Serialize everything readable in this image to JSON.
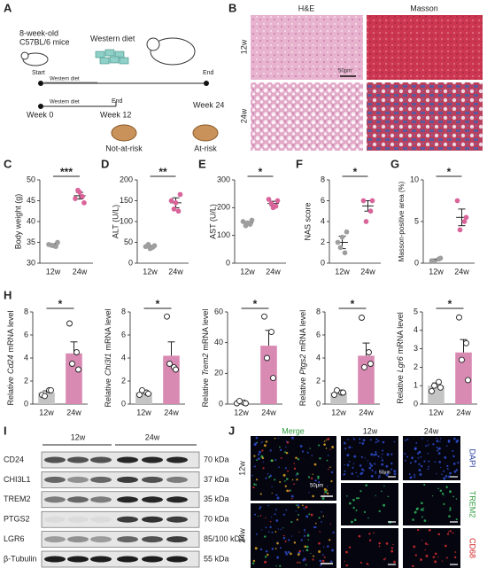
{
  "panel_labels": [
    "A",
    "B",
    "C",
    "D",
    "E",
    "F",
    "G",
    "H",
    "I",
    "J"
  ],
  "panel_a": {
    "mice": [
      "8-week-old",
      "C57BL/6 mice"
    ],
    "diet": "Western diet",
    "start": "Start",
    "end_top": "End",
    "timeline1_label": "Western diet",
    "timeline2_label": "Western diet",
    "end_mid": "End",
    "weeks": [
      "Week 0",
      "Week 12",
      "Week 24"
    ],
    "outcomes": [
      "Not-at-risk",
      "At-risk"
    ]
  },
  "panel_b": {
    "columns": [
      "H&E",
      "Masson"
    ],
    "rows": [
      "12w",
      "24w"
    ],
    "scale_bar": "50μm"
  },
  "chart_data": [
    {
      "type": "dot",
      "ylabel": "Body weight (g)",
      "categories": [
        "12w",
        "24w"
      ],
      "colors": [
        "#9e9e9e",
        "#d9649a"
      ],
      "values": [
        34.5,
        46.2
      ],
      "errors": [
        0.2,
        0.8
      ],
      "points": [
        [
          34.5,
          34,
          34.3,
          35,
          34.2
        ],
        [
          45.5,
          46,
          47.5,
          44.5,
          47
        ]
      ],
      "ylim": [
        30,
        50
      ],
      "yticks": [
        30,
        35,
        40,
        45,
        50
      ],
      "significance": "***"
    },
    {
      "type": "dot",
      "ylabel": "ALT (U/L)",
      "categories": [
        "12w",
        "24w"
      ],
      "colors": [
        "#9e9e9e",
        "#d9649a"
      ],
      "values": [
        40,
        145
      ],
      "errors": [
        2,
        12
      ],
      "points": [
        [
          40,
          38,
          45,
          42,
          35
        ],
        [
          150,
          125,
          130,
          165,
          145
        ]
      ],
      "ylim": [
        0,
        200
      ],
      "yticks": [
        0,
        50,
        100,
        150,
        200
      ],
      "significance": "**"
    },
    {
      "type": "dot",
      "ylabel": "AST (U/L)",
      "categories": [
        "12w",
        "24w"
      ],
      "colors": [
        "#9e9e9e",
        "#d9649a"
      ],
      "values": [
        145,
        215
      ],
      "errors": [
        5,
        8
      ],
      "points": [
        [
          150,
          140,
          135,
          155,
          145
        ],
        [
          230,
          205,
          215,
          225,
          200
        ]
      ],
      "ylim": [
        0,
        300
      ],
      "yticks": [
        0,
        100,
        200,
        300
      ],
      "significance": "*"
    },
    {
      "type": "dot",
      "ylabel": "NAS score",
      "categories": [
        "12w",
        "24w"
      ],
      "colors": [
        "#9e9e9e",
        "#d9649a"
      ],
      "values": [
        2,
        5.5
      ],
      "errors": [
        0.6,
        0.5
      ],
      "points": [
        [
          2,
          1,
          1.5,
          3,
          2.5
        ],
        [
          6,
          5,
          4,
          6
        ]
      ],
      "ylim": [
        0,
        8
      ],
      "yticks": [
        0,
        2,
        4,
        6,
        8
      ],
      "significance": "*"
    },
    {
      "type": "dot",
      "ylabel": "Masson-positive area (%)",
      "categories": [
        "12w",
        "24w"
      ],
      "colors": [
        "#9e9e9e",
        "#d9649a"
      ],
      "values": [
        0.4,
        5.5
      ],
      "errors": [
        0.1,
        1
      ],
      "points": [
        [
          0.3,
          0.5,
          0.2,
          0.6
        ],
        [
          7.5,
          5,
          4,
          5.5
        ]
      ],
      "ylim": [
        0,
        10
      ],
      "yticks": [
        0,
        5,
        10
      ],
      "significance": "*"
    },
    {
      "type": "bar",
      "ylabel": [
        "Relative",
        "Cd24",
        "mRNA level"
      ],
      "categories": [
        "12w",
        "24w"
      ],
      "colors": [
        "#c4c4c4",
        "#d98ab3"
      ],
      "values": [
        1,
        4.4
      ],
      "errors": [
        0.15,
        1
      ],
      "points": [
        [
          0.8,
          1.2,
          0.7,
          1.2
        ],
        [
          7,
          4.5,
          3.5,
          3
        ]
      ],
      "ylim": [
        0,
        8
      ],
      "yticks": [
        0,
        2,
        4,
        6,
        8
      ],
      "significance": "*"
    },
    {
      "type": "bar",
      "ylabel": [
        "Relative",
        "Chi3l1",
        "mRNA level"
      ],
      "categories": [
        "12w",
        "24w"
      ],
      "colors": [
        "#c4c4c4",
        "#d98ab3"
      ],
      "values": [
        1,
        4.2
      ],
      "errors": [
        0.1,
        1.2
      ],
      "points": [
        [
          0.8,
          1,
          1.2,
          0.9
        ],
        [
          7.6,
          3.2,
          3.5,
          3
        ]
      ],
      "ylim": [
        0,
        8
      ],
      "yticks": [
        0,
        2,
        4,
        6,
        8
      ],
      "significance": "*"
    },
    {
      "type": "bar",
      "ylabel": [
        "Relative",
        "Trem2",
        "mRNA level"
      ],
      "categories": [
        "12w",
        "24w"
      ],
      "colors": [
        "#c4c4c4",
        "#d98ab3"
      ],
      "values": [
        1,
        38
      ],
      "errors": [
        0.4,
        10
      ],
      "points": [
        [
          0.5,
          1,
          2,
          0.5
        ],
        [
          57,
          47,
          30,
          17
        ]
      ],
      "ylim": [
        0,
        60
      ],
      "yticks": [
        0,
        20,
        40,
        60
      ],
      "significance": "*"
    },
    {
      "type": "bar",
      "ylabel": [
        "Relative",
        "Ptgs2",
        "mRNA level"
      ],
      "categories": [
        "12w",
        "24w"
      ],
      "colors": [
        "#c4c4c4",
        "#d98ab3"
      ],
      "values": [
        1,
        4.2
      ],
      "errors": [
        0.1,
        1.1
      ],
      "points": [
        [
          0.8,
          1,
          1.2,
          1
        ],
        [
          7.5,
          4.5,
          3.2,
          3.5
        ]
      ],
      "ylim": [
        0,
        8
      ],
      "yticks": [
        0,
        2,
        4,
        6,
        8
      ],
      "significance": "*"
    },
    {
      "type": "bar",
      "ylabel": [
        "Relative",
        "Lgr6",
        "mRNA level"
      ],
      "categories": [
        "12w",
        "24w"
      ],
      "colors": [
        "#c4c4c4",
        "#d98ab3"
      ],
      "values": [
        1,
        2.8
      ],
      "errors": [
        0.15,
        0.7
      ],
      "points": [
        [
          0.7,
          1.2,
          1,
          0.9
        ],
        [
          4.7,
          3.3,
          2.4,
          1.3
        ]
      ],
      "ylim": [
        0,
        5
      ],
      "yticks": [
        0,
        1,
        2,
        3,
        4,
        5
      ],
      "significance": "*"
    }
  ],
  "panel_i": {
    "groups": [
      "12w",
      "24w"
    ],
    "proteins": [
      {
        "name": "CD24",
        "size": "70 kDa"
      },
      {
        "name": "CHI3L1",
        "size": "37 kDa"
      },
      {
        "name": "TREM2",
        "size": "35 kDa"
      },
      {
        "name": "PTGS2",
        "size": "70 kDa"
      },
      {
        "name": "LGR6",
        "size": "85/100 kDa"
      },
      {
        "name": "β-Tubulin",
        "size": "55 kDa"
      }
    ]
  },
  "panel_j": {
    "merge": "Merge",
    "groups": [
      "12w",
      "24w"
    ],
    "rows": [
      "12w",
      "24w"
    ],
    "channels": [
      "DAPI",
      "TREM2",
      "CD68"
    ],
    "scale_bar": "50μm"
  }
}
